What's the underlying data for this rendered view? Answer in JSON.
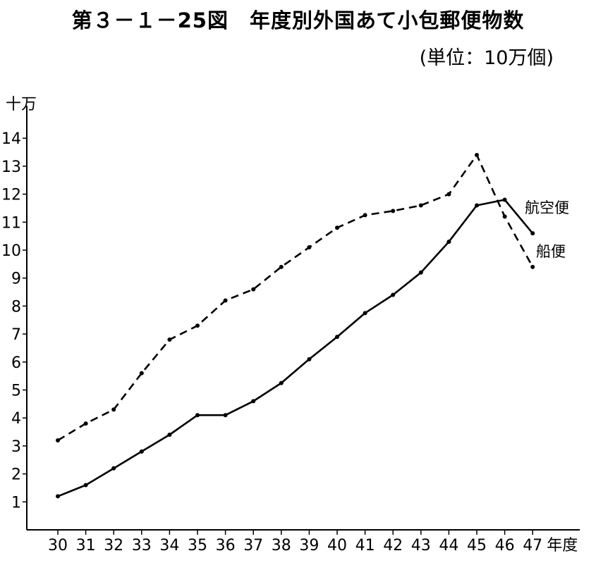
{
  "chart_data": {
    "type": "line",
    "title": "第３－１－25図　年度別外国あて小包郵便物数",
    "unit_label": "(単位：10万個)",
    "ylabel": "十万",
    "xlabel": "年度",
    "categories": [
      "30",
      "31",
      "32",
      "33",
      "34",
      "35",
      "36",
      "37",
      "38",
      "39",
      "40",
      "41",
      "42",
      "43",
      "44",
      "45",
      "46",
      "47"
    ],
    "ylim": [
      0,
      14
    ],
    "y_ticks": [
      1,
      2,
      3,
      4,
      5,
      6,
      7,
      8,
      9,
      10,
      11,
      12,
      13,
      14
    ],
    "grid": false,
    "legend": "inline",
    "series": [
      {
        "name": "航空便",
        "style": "solid",
        "values": [
          1.2,
          1.6,
          2.2,
          2.8,
          3.4,
          4.1,
          4.1,
          4.6,
          5.25,
          6.1,
          6.9,
          7.75,
          8.4,
          9.2,
          10.3,
          11.6,
          11.8,
          10.6
        ]
      },
      {
        "name": "船便",
        "style": "dashed",
        "values": [
          3.2,
          3.8,
          4.3,
          5.6,
          6.8,
          7.3,
          8.2,
          8.6,
          9.4,
          10.1,
          10.8,
          11.25,
          11.4,
          11.6,
          12.0,
          13.4,
          11.2,
          9.4
        ]
      }
    ]
  }
}
